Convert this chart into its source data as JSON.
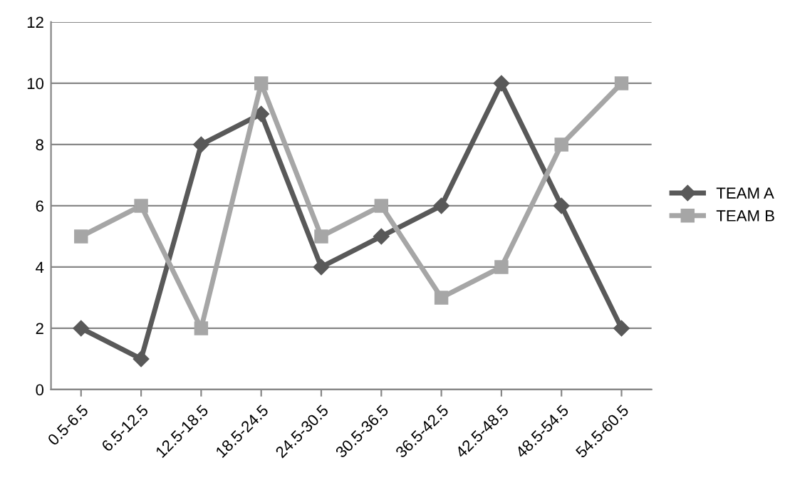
{
  "chart_data": {
    "type": "line",
    "categories": [
      "0.5-6.5",
      "6.5-12.5",
      "12.5-18.5",
      "18.5-24.5",
      "24.5-30.5",
      "30.5-36.5",
      "36.5-42.5",
      "42.5-48.5",
      "48.5-54.5",
      "54.5-60.5"
    ],
    "series": [
      {
        "name": "TEAM A",
        "color": "#595959",
        "marker": "diamond",
        "values": [
          2,
          1,
          8,
          9,
          4,
          5,
          6,
          10,
          6,
          2
        ]
      },
      {
        "name": "TEAM B",
        "color": "#a6a6a6",
        "marker": "square",
        "values": [
          5,
          6,
          2,
          10,
          5,
          6,
          3,
          4,
          8,
          10
        ]
      }
    ],
    "ylim": [
      0,
      12
    ],
    "yticks": [
      0,
      2,
      4,
      6,
      8,
      10,
      12
    ],
    "grid": "y",
    "legend": "right",
    "line_style": "solid"
  }
}
